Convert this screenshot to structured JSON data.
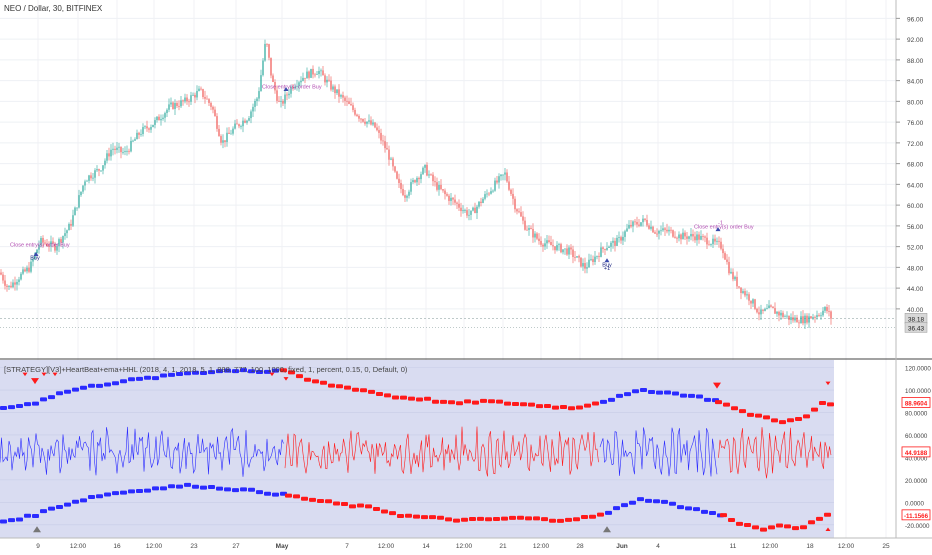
{
  "header": {
    "symbol_title": "NEO / Dollar, 30, BITFINEX"
  },
  "indicator": {
    "title": "[STRATEGY][V3]+HeartBeat+ema+HHL (2018, 4, 1, 2018, 5, 1, 888, 777, 100, 1000, fixed, 1, percent, 0.15, 0, Default, 0)"
  },
  "colors": {
    "bull": "#26a69a",
    "bear": "#ef5350",
    "blue": "#2b2bff",
    "red": "#ff1a1a",
    "panel_bg": "#d9dcf1",
    "signal_text": "#b04ab0",
    "buy_text": "#1a237e"
  },
  "chart_data": [
    {
      "type": "candlestick",
      "name": "price",
      "ylim": [
        34,
        98
      ],
      "y_ticks": [
        "96.00",
        "92.00",
        "88.00",
        "84.00",
        "80.00",
        "76.00",
        "72.00",
        "68.00",
        "64.00",
        "60.00",
        "56.00",
        "52.00",
        "48.00",
        "44.00",
        "40.00"
      ],
      "price_labels": [
        "38.18",
        "36.43"
      ],
      "x_ticks": [
        "9",
        "12:00",
        "16",
        "12:00",
        "23",
        "27",
        "May",
        "7",
        "12:00",
        "14",
        "12:00",
        "21",
        "12:00",
        "28",
        "Jun",
        "4",
        "11",
        "12:00",
        "18",
        "12:00",
        "25"
      ],
      "path": [
        [
          0,
          47
        ],
        [
          8,
          44
        ],
        [
          18,
          46
        ],
        [
          30,
          48
        ],
        [
          40,
          53
        ],
        [
          55,
          52
        ],
        [
          70,
          56
        ],
        [
          85,
          65
        ],
        [
          100,
          67
        ],
        [
          112,
          71
        ],
        [
          125,
          70
        ],
        [
          140,
          74
        ],
        [
          155,
          76
        ],
        [
          170,
          79
        ],
        [
          185,
          80
        ],
        [
          200,
          82
        ],
        [
          212,
          79
        ],
        [
          222,
          72
        ],
        [
          235,
          75
        ],
        [
          248,
          77
        ],
        [
          258,
          81
        ],
        [
          266,
          92
        ],
        [
          272,
          84
        ],
        [
          280,
          79
        ],
        [
          292,
          83
        ],
        [
          305,
          85
        ],
        [
          318,
          86
        ],
        [
          330,
          83
        ],
        [
          345,
          80
        ],
        [
          360,
          77
        ],
        [
          375,
          75
        ],
        [
          388,
          70
        ],
        [
          398,
          64
        ],
        [
          405,
          62
        ],
        [
          415,
          65
        ],
        [
          425,
          67
        ],
        [
          435,
          64
        ],
        [
          445,
          62
        ],
        [
          458,
          60
        ],
        [
          470,
          58
        ],
        [
          482,
          61
        ],
        [
          495,
          64
        ],
        [
          505,
          66
        ],
        [
          515,
          60
        ],
        [
          525,
          56
        ],
        [
          540,
          53
        ],
        [
          555,
          52
        ],
        [
          570,
          51
        ],
        [
          585,
          48
        ],
        [
          595,
          50
        ],
        [
          605,
          52
        ],
        [
          618,
          53
        ],
        [
          630,
          56
        ],
        [
          645,
          57
        ],
        [
          655,
          55
        ],
        [
          668,
          55
        ],
        [
          680,
          54
        ],
        [
          695,
          54
        ],
        [
          710,
          53
        ],
        [
          722,
          52
        ],
        [
          730,
          47
        ],
        [
          740,
          44
        ],
        [
          750,
          42
        ],
        [
          760,
          39
        ],
        [
          770,
          40
        ],
        [
          780,
          39
        ],
        [
          792,
          38
        ],
        [
          805,
          38
        ],
        [
          818,
          39
        ],
        [
          826,
          40
        ],
        [
          832,
          38
        ]
      ],
      "annotations": [
        {
          "text": "Close entry(s) order Buy",
          "x": 10,
          "y": 52
        },
        {
          "text": "Buy",
          "x": 35,
          "y": 49.5
        },
        {
          "text": "Close entry(s) order Buy",
          "x": 262,
          "y": 82.5
        },
        {
          "text": "Buy",
          "x": 607,
          "y": 48.2
        },
        {
          "text": "+1",
          "x": 607,
          "y": 47.5
        },
        {
          "text": "Close entry(s) order Buy",
          "x": 694,
          "y": 55.5
        },
        {
          "text": "-1",
          "x": 718,
          "y": 56.3
        }
      ]
    },
    {
      "type": "line",
      "name": "indicator",
      "ylim": [
        -30,
        125
      ],
      "y_ticks": [
        "120.0000",
        "100.0000",
        "80.0000",
        "60.0000",
        "40.0000",
        "20.0000",
        "0.0000",
        "-20.0000"
      ],
      "value_labels": [
        "88.9604",
        "44.9188",
        "-11.1566"
      ],
      "series": [
        {
          "color": "blue",
          "points": [
            [
              0,
              84
            ],
            [
              30,
              88
            ],
            [
              40,
              92
            ],
            [
              60,
              98
            ],
            [
              80,
              102
            ],
            [
              100,
              105
            ],
            [
              120,
              108
            ],
            [
              140,
              110
            ],
            [
              160,
              112
            ],
            [
              180,
              115
            ],
            [
              200,
              116
            ],
            [
              220,
              117
            ],
            [
              240,
              118
            ],
            [
              260,
              116
            ],
            [
              280,
              118
            ]
          ]
        },
        {
          "color": "red",
          "points": [
            [
              280,
              118
            ],
            [
              300,
              110
            ],
            [
              330,
              104
            ],
            [
              360,
              100
            ],
            [
              390,
              94
            ],
            [
              420,
              92
            ],
            [
              450,
              88
            ],
            [
              480,
              90
            ],
            [
              510,
              88
            ],
            [
              540,
              86
            ],
            [
              570,
              84
            ],
            [
              600,
              90
            ]
          ]
        },
        {
          "color": "blue",
          "points": [
            [
              600,
              90
            ],
            [
              620,
              95
            ],
            [
              640,
              100
            ],
            [
              660,
              98
            ],
            [
              680,
              96
            ],
            [
              700,
              93
            ],
            [
              715,
              90
            ]
          ]
        },
        {
          "color": "red",
          "points": [
            [
              715,
              90
            ],
            [
              740,
              80
            ],
            [
              760,
              76
            ],
            [
              780,
              72
            ],
            [
              800,
              74
            ],
            [
              818,
              88
            ],
            [
              832,
              87
            ]
          ]
        },
        {
          "color": "blue",
          "points": [
            [
              0,
              -17
            ],
            [
              30,
              -12
            ],
            [
              50,
              -5
            ],
            [
              70,
              0
            ],
            [
              90,
              5
            ],
            [
              110,
              8
            ],
            [
              130,
              10
            ],
            [
              150,
              12
            ],
            [
              170,
              14
            ],
            [
              190,
              15
            ],
            [
              210,
              13
            ],
            [
              230,
              12
            ],
            [
              250,
              10
            ],
            [
              270,
              8
            ],
            [
              285,
              6
            ]
          ]
        },
        {
          "color": "red",
          "points": [
            [
              285,
              6
            ],
            [
              310,
              2
            ],
            [
              340,
              -2
            ],
            [
              370,
              -5
            ],
            [
              400,
              -12
            ],
            [
              430,
              -14
            ],
            [
              460,
              -16
            ],
            [
              490,
              -15
            ],
            [
              520,
              -14
            ],
            [
              550,
              -16
            ],
            [
              580,
              -14
            ],
            [
              605,
              -10
            ]
          ]
        },
        {
          "color": "blue",
          "points": [
            [
              605,
              -10
            ],
            [
              620,
              -2
            ],
            [
              640,
              3
            ],
            [
              660,
              0
            ],
            [
              680,
              -4
            ],
            [
              700,
              -8
            ],
            [
              720,
              -12
            ]
          ]
        },
        {
          "color": "red",
          "points": [
            [
              720,
              -12
            ],
            [
              740,
              -20
            ],
            [
              760,
              -24
            ],
            [
              780,
              -21
            ],
            [
              800,
              -23
            ],
            [
              820,
              -12
            ],
            [
              832,
              -11
            ]
          ]
        }
      ]
    }
  ]
}
